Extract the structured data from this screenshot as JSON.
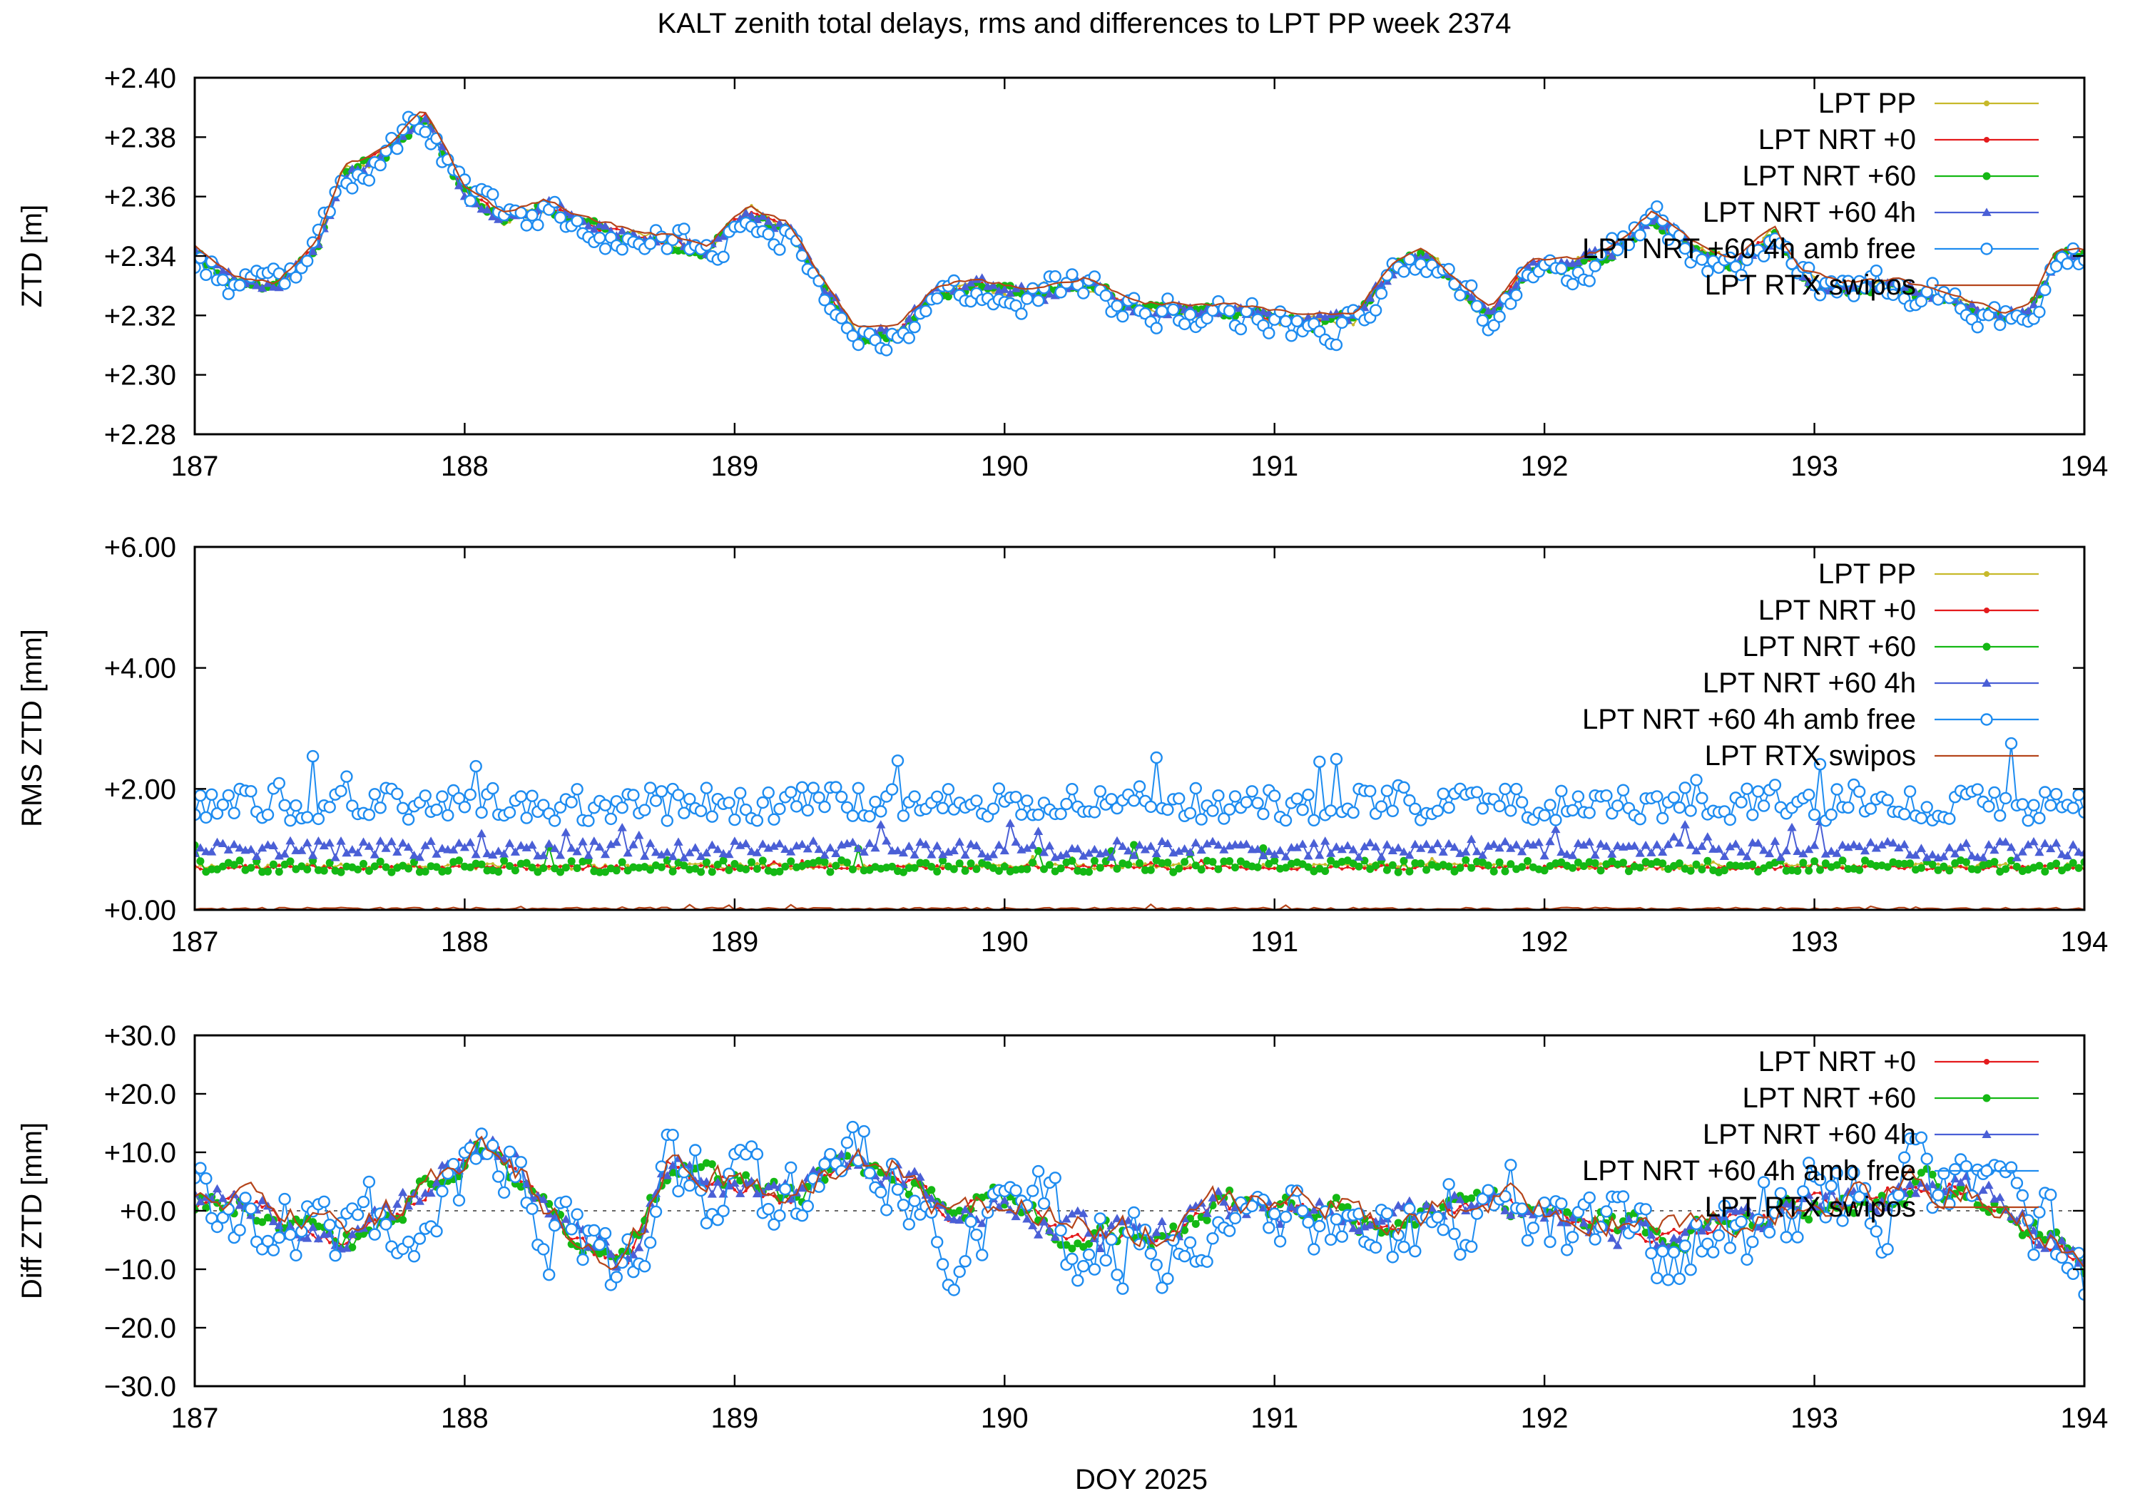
{
  "figure_title": "KALT zenith total delays, rms and differences to LPT PP week 2374",
  "x_axis_label": "DOY 2025",
  "colors": {
    "LPT PP": "#c7b92a",
    "LPT NRT +0": "#e41a1c",
    "LPT NRT +60": "#14b814",
    "LPT NRT +60 4h": "#4a5fd6",
    "LPT NRT +60 4h amb free": "#1e8cf0",
    "LPT RTX swipos": "#b5451b"
  },
  "chart_data": [
    {
      "type": "line",
      "ylabel": "ZTD [m]",
      "xlim": [
        187,
        194
      ],
      "ylim": [
        2.28,
        2.4
      ],
      "x_ticks": [
        "187",
        "188",
        "189",
        "190",
        "191",
        "192",
        "193",
        "194"
      ],
      "y_ticks": [
        "+2.28",
        "+2.30",
        "+2.32",
        "+2.34",
        "+2.36",
        "+2.38",
        "+2.40"
      ],
      "grid": false,
      "legend": "top-right",
      "legend_entries": [
        "LPT PP",
        "LPT NRT +0",
        "LPT NRT +60",
        "LPT NRT +60 4h",
        "LPT NRT +60 4h amb free",
        "LPT RTX swipos"
      ],
      "base_curve": {
        "x": [
          187.0,
          187.15,
          187.3,
          187.45,
          187.55,
          187.7,
          187.85,
          188.0,
          188.15,
          188.3,
          188.45,
          188.6,
          188.75,
          188.9,
          189.05,
          189.2,
          189.35,
          189.45,
          189.6,
          189.75,
          189.9,
          190.1,
          190.3,
          190.5,
          190.7,
          190.9,
          191.1,
          191.3,
          191.45,
          191.55,
          191.7,
          191.8,
          191.95,
          192.1,
          192.25,
          192.4,
          192.55,
          192.7,
          192.85,
          192.95,
          193.1,
          193.3,
          193.5,
          193.7,
          193.8,
          193.9,
          194.0
        ],
        "y": [
          2.341,
          2.331,
          2.329,
          2.343,
          2.368,
          2.374,
          2.387,
          2.362,
          2.352,
          2.357,
          2.351,
          2.347,
          2.345,
          2.342,
          2.355,
          2.349,
          2.327,
          2.314,
          2.315,
          2.328,
          2.33,
          2.327,
          2.331,
          2.322,
          2.322,
          2.321,
          2.318,
          2.319,
          2.337,
          2.341,
          2.328,
          2.321,
          2.337,
          2.337,
          2.341,
          2.353,
          2.343,
          2.337,
          2.348,
          2.333,
          2.329,
          2.33,
          2.325,
          2.319,
          2.322,
          2.34,
          2.34
        ]
      },
      "series": [
        {
          "name": "LPT PP",
          "marker": "dot",
          "noise": 0.0018,
          "offset": 0.0,
          "size": 2.2,
          "seed": 11
        },
        {
          "name": "LPT NRT +0",
          "marker": "dot",
          "noise": 0.0012,
          "offset": 0.0,
          "size": 2.2,
          "seed": 23
        },
        {
          "name": "LPT NRT +60",
          "marker": "disc",
          "noise": 0.0016,
          "offset": -0.0005,
          "size": 5.5,
          "seed": 37
        },
        {
          "name": "LPT NRT +60 4h",
          "marker": "triangle",
          "noise": 0.0018,
          "offset": 0.0,
          "size": 5.5,
          "seed": 41
        },
        {
          "name": "LPT NRT +60 4h amb free",
          "marker": "circle",
          "noise": 0.0045,
          "offset": -0.001,
          "size": 7.5,
          "seed": 53
        },
        {
          "name": "LPT RTX swipos",
          "marker": "none",
          "noise": 0.0006,
          "offset": 0.002,
          "size": 0,
          "seed": 67
        }
      ]
    },
    {
      "type": "line",
      "ylabel": "RMS ZTD [mm]",
      "xlim": [
        187,
        194
      ],
      "ylim": [
        0,
        6
      ],
      "x_ticks": [
        "187",
        "188",
        "189",
        "190",
        "191",
        "192",
        "193",
        "194"
      ],
      "y_ticks": [
        "+0.00",
        "+2.00",
        "+4.00",
        "+6.00"
      ],
      "grid": false,
      "legend": "top-right",
      "legend_entries": [
        "LPT PP",
        "LPT NRT +0",
        "LPT NRT +60",
        "LPT NRT +60 4h",
        "LPT NRT +60 4h amb free",
        "LPT RTX swipos"
      ],
      "series": [
        {
          "name": "LPT PP",
          "marker": "dot",
          "level": 0.72,
          "noise": 0.05,
          "size": 2.2,
          "seed": 71
        },
        {
          "name": "LPT NRT +0",
          "marker": "dot",
          "level": 0.7,
          "noise": 0.04,
          "size": 2.2,
          "seed": 73
        },
        {
          "name": "LPT NRT +60",
          "marker": "disc",
          "level": 0.72,
          "noise": 0.1,
          "size": 5.5,
          "seed": 79
        },
        {
          "name": "LPT NRT +60 4h",
          "marker": "triangle",
          "level": 1.0,
          "noise": 0.14,
          "size": 5.5,
          "seed": 83
        },
        {
          "name": "LPT NRT +60 4h amb free",
          "marker": "circle",
          "level": 1.75,
          "noise": 0.28,
          "size": 7.5,
          "seed": 89
        },
        {
          "name": "LPT RTX swipos",
          "marker": "none",
          "level": 0.02,
          "noise": 0.02,
          "size": 0,
          "seed": 97
        }
      ]
    },
    {
      "type": "line",
      "ylabel": "Diff ZTD [mm]",
      "xlim": [
        187,
        194
      ],
      "ylim": [
        -30,
        30
      ],
      "x_ticks": [
        "187",
        "188",
        "189",
        "190",
        "191",
        "192",
        "193",
        "194"
      ],
      "y_ticks": [
        "−30.0",
        "−20.0",
        "−10.0",
        "+0.0",
        "+10.0",
        "+20.0",
        "+30.0"
      ],
      "zero_line": true,
      "grid": false,
      "legend": "top-right",
      "legend_entries": [
        "LPT NRT +0",
        "LPT NRT +60",
        "LPT NRT +60 4h",
        "LPT NRT +60 4h amb free",
        "LPT RTX swipos"
      ],
      "base_curve": {
        "x": [
          187.0,
          187.2,
          187.4,
          187.6,
          187.8,
          188.0,
          188.1,
          188.2,
          188.4,
          188.6,
          188.75,
          189.0,
          189.2,
          189.4,
          189.6,
          189.8,
          190.0,
          190.2,
          190.4,
          190.6,
          190.8,
          191.0,
          191.2,
          191.4,
          191.6,
          191.8,
          192.0,
          192.2,
          192.4,
          192.6,
          192.8,
          193.0,
          193.2,
          193.4,
          193.6,
          193.8,
          194.0
        ],
        "y": [
          1.0,
          2.0,
          -3.0,
          -5.0,
          2.0,
          9.0,
          11.0,
          6.0,
          -4.0,
          -9.0,
          7.0,
          4.0,
          2.0,
          8.0,
          7.0,
          -1.0,
          2.0,
          -3.0,
          -4.0,
          -4.0,
          1.0,
          0.5,
          1.0,
          -3.0,
          0.0,
          2.0,
          0.0,
          -2.0,
          -4.0,
          -3.0,
          -1.0,
          1.0,
          2.0,
          4.0,
          3.0,
          -3.0,
          -9.0
        ]
      },
      "series": [
        {
          "name": "LPT NRT +0",
          "marker": "dot",
          "noise": 1.3,
          "offset": 0.0,
          "size": 2.2,
          "seed": 101
        },
        {
          "name": "LPT NRT +60",
          "marker": "disc",
          "noise": 1.9,
          "offset": 0.0,
          "size": 5.5,
          "seed": 103
        },
        {
          "name": "LPT NRT +60 4h",
          "marker": "triangle",
          "noise": 2.1,
          "offset": 0.0,
          "size": 5.5,
          "seed": 107
        },
        {
          "name": "LPT NRT +60 4h amb free",
          "marker": "circle",
          "noise": 6.5,
          "offset": -1.0,
          "size": 7.5,
          "seed": 109
        },
        {
          "name": "LPT RTX swipos",
          "marker": "none",
          "noise": 2.2,
          "offset": 0.5,
          "size": 0,
          "seed": 113
        }
      ]
    }
  ]
}
